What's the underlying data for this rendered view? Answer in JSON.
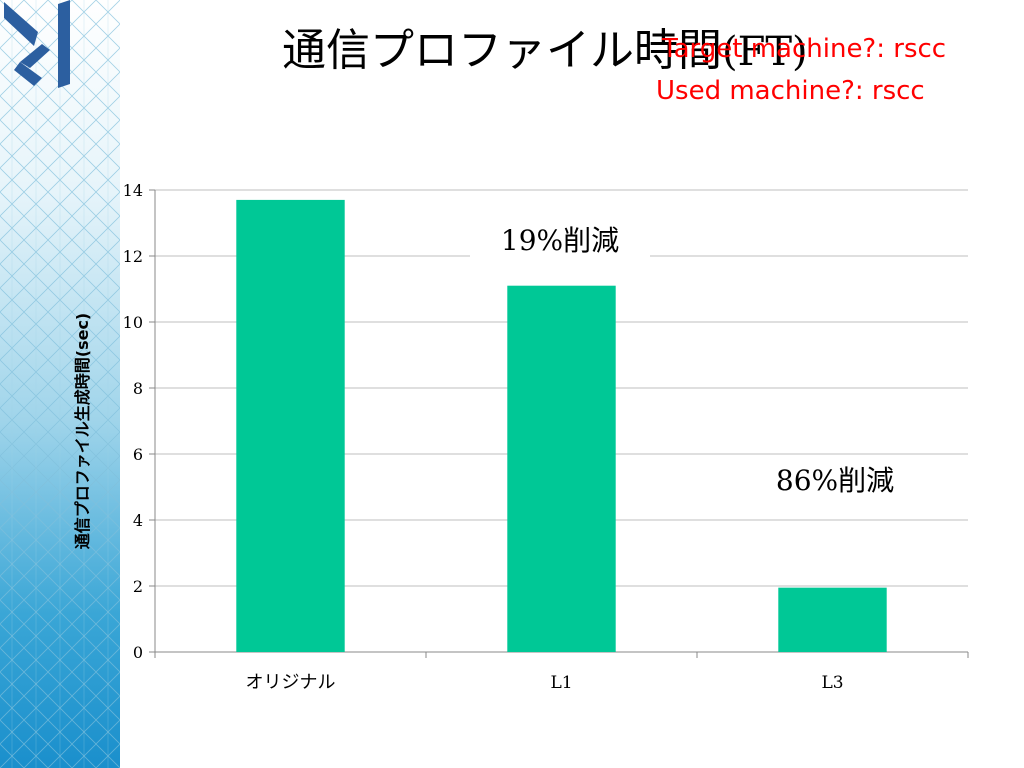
{
  "slide": {
    "title_main": "通信プロファイル時間",
    "title_suffix": "(FT)",
    "note_target": "Target machine?: rscc",
    "note_used": "Used machine?: rscc",
    "accent_color": "#00c896",
    "note_color": "#ff0000"
  },
  "chart_data": {
    "type": "bar",
    "categories": [
      "オリジナル",
      "L1",
      "L3"
    ],
    "values": [
      13.7,
      11.1,
      1.95
    ],
    "ylabel": "通信プロファイル生成時間(sec)",
    "xlabel": "",
    "ylim": [
      0,
      14
    ],
    "yticks": [
      0,
      2,
      4,
      6,
      8,
      10,
      12,
      14
    ],
    "grid": true,
    "annotations": [
      {
        "text": "19%削減"
      },
      {
        "text": "86%削減"
      }
    ]
  }
}
